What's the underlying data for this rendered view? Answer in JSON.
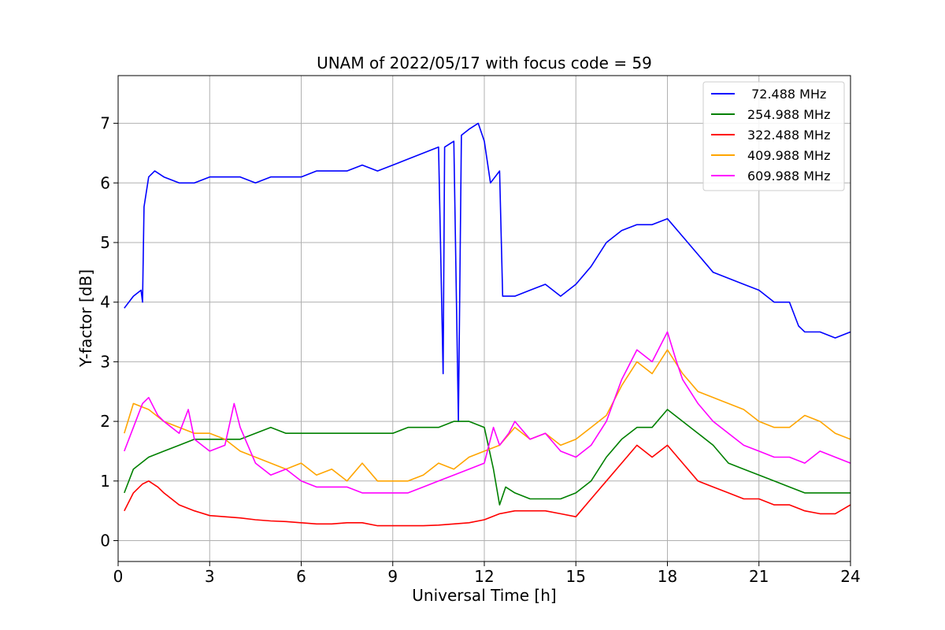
{
  "chart_data": {
    "type": "line",
    "title": "UNAM of 2022/05/17 with focus code = 59",
    "xlabel": "Universal Time [h]",
    "ylabel": "Y-factor [dB]",
    "xlim": [
      0,
      24
    ],
    "ylim": [
      -0.35,
      7.8
    ],
    "xticks": [
      0,
      3,
      6,
      9,
      12,
      15,
      18,
      21,
      24
    ],
    "yticks": [
      0,
      1,
      2,
      3,
      4,
      5,
      6,
      7
    ],
    "grid": true,
    "legend_position": "top-right",
    "series": [
      {
        "name": " 72.488 MHz",
        "color": "#0000ff",
        "x": [
          0.2,
          0.5,
          0.75,
          0.8,
          0.85,
          1.0,
          1.2,
          1.5,
          2.0,
          2.5,
          3.0,
          3.5,
          4.0,
          4.5,
          5.0,
          5.5,
          6.0,
          6.5,
          7.0,
          7.5,
          8.0,
          8.5,
          9.0,
          9.5,
          10.0,
          10.5,
          10.65,
          10.7,
          11.0,
          11.15,
          11.25,
          11.5,
          11.8,
          12.0,
          12.2,
          12.5,
          12.6,
          12.8,
          13.0,
          13.5,
          14.0,
          14.5,
          15.0,
          15.5,
          16.0,
          16.5,
          17.0,
          17.5,
          18.0,
          18.5,
          19.0,
          19.5,
          20.0,
          20.5,
          21.0,
          21.5,
          22.0,
          22.3,
          22.5,
          23.0,
          23.5,
          24.0
        ],
        "y": [
          3.9,
          4.1,
          4.2,
          4.0,
          5.6,
          6.1,
          6.2,
          6.1,
          6.0,
          6.0,
          6.1,
          6.1,
          6.1,
          6.0,
          6.1,
          6.1,
          6.1,
          6.2,
          6.2,
          6.2,
          6.3,
          6.2,
          6.3,
          6.4,
          6.5,
          6.6,
          2.8,
          6.6,
          6.7,
          2.0,
          6.8,
          6.9,
          7.0,
          6.7,
          6.0,
          6.2,
          4.1,
          4.1,
          4.1,
          4.2,
          4.3,
          4.1,
          4.3,
          4.6,
          5.0,
          5.2,
          5.3,
          5.3,
          5.4,
          5.1,
          4.8,
          4.5,
          4.4,
          4.3,
          4.2,
          4.0,
          4.0,
          3.6,
          3.5,
          3.5,
          3.4,
          3.5
        ]
      },
      {
        "name": "254.988 MHz",
        "color": "#008000",
        "x": [
          0.2,
          0.5,
          1.0,
          1.5,
          2.0,
          2.5,
          3.0,
          3.5,
          4.0,
          4.5,
          5.0,
          5.5,
          6.0,
          6.5,
          7.0,
          7.5,
          8.0,
          8.5,
          9.0,
          9.5,
          10.0,
          10.5,
          11.0,
          11.5,
          12.0,
          12.3,
          12.5,
          12.7,
          13.0,
          13.5,
          14.0,
          14.5,
          15.0,
          15.5,
          16.0,
          16.5,
          17.0,
          17.5,
          18.0,
          18.5,
          19.0,
          19.5,
          20.0,
          20.5,
          21.0,
          21.5,
          22.0,
          22.5,
          23.0,
          23.5,
          24.0
        ],
        "y": [
          0.8,
          1.2,
          1.4,
          1.5,
          1.6,
          1.7,
          1.7,
          1.7,
          1.7,
          1.8,
          1.9,
          1.8,
          1.8,
          1.8,
          1.8,
          1.8,
          1.8,
          1.8,
          1.8,
          1.9,
          1.9,
          1.9,
          2.0,
          2.0,
          1.9,
          1.2,
          0.6,
          0.9,
          0.8,
          0.7,
          0.7,
          0.7,
          0.8,
          1.0,
          1.4,
          1.7,
          1.9,
          1.9,
          2.2,
          2.0,
          1.8,
          1.6,
          1.3,
          1.2,
          1.1,
          1.0,
          0.9,
          0.8,
          0.8,
          0.8,
          0.8
        ]
      },
      {
        "name": "322.488 MHz",
        "color": "#ff0000",
        "x": [
          0.2,
          0.5,
          0.8,
          1.0,
          1.3,
          1.5,
          2.0,
          2.5,
          3.0,
          3.5,
          4.0,
          4.5,
          5.0,
          5.5,
          6.0,
          6.5,
          7.0,
          7.5,
          8.0,
          8.5,
          9.0,
          9.5,
          10.0,
          10.5,
          11.0,
          11.5,
          12.0,
          12.5,
          13.0,
          13.5,
          14.0,
          14.5,
          15.0,
          15.5,
          16.0,
          16.5,
          17.0,
          17.5,
          18.0,
          18.5,
          19.0,
          19.5,
          20.0,
          20.5,
          21.0,
          21.5,
          22.0,
          22.5,
          23.0,
          23.5,
          24.0
        ],
        "y": [
          0.5,
          0.8,
          0.95,
          1.0,
          0.9,
          0.8,
          0.6,
          0.5,
          0.42,
          0.4,
          0.38,
          0.35,
          0.33,
          0.32,
          0.3,
          0.28,
          0.28,
          0.3,
          0.3,
          0.25,
          0.25,
          0.25,
          0.25,
          0.26,
          0.28,
          0.3,
          0.35,
          0.45,
          0.5,
          0.5,
          0.5,
          0.45,
          0.4,
          0.7,
          1.0,
          1.3,
          1.6,
          1.4,
          1.6,
          1.3,
          1.0,
          0.9,
          0.8,
          0.7,
          0.7,
          0.6,
          0.6,
          0.5,
          0.45,
          0.45,
          0.6
        ]
      },
      {
        "name": "409.988 MHz",
        "color": "#ffa500",
        "x": [
          0.2,
          0.5,
          1.0,
          1.5,
          2.0,
          2.5,
          3.0,
          3.5,
          4.0,
          4.5,
          5.0,
          5.5,
          6.0,
          6.5,
          7.0,
          7.5,
          8.0,
          8.5,
          9.0,
          9.5,
          10.0,
          10.5,
          11.0,
          11.5,
          12.0,
          12.5,
          13.0,
          13.5,
          14.0,
          14.5,
          15.0,
          15.5,
          16.0,
          16.5,
          17.0,
          17.5,
          18.0,
          18.5,
          19.0,
          19.5,
          20.0,
          20.5,
          21.0,
          21.5,
          22.0,
          22.5,
          23.0,
          23.5,
          24.0
        ],
        "y": [
          1.8,
          2.3,
          2.2,
          2.0,
          1.9,
          1.8,
          1.8,
          1.7,
          1.5,
          1.4,
          1.3,
          1.2,
          1.3,
          1.1,
          1.2,
          1.0,
          1.3,
          1.0,
          1.0,
          1.0,
          1.1,
          1.3,
          1.2,
          1.4,
          1.5,
          1.6,
          1.9,
          1.7,
          1.8,
          1.6,
          1.7,
          1.9,
          2.1,
          2.6,
          3.0,
          2.8,
          3.2,
          2.8,
          2.5,
          2.4,
          2.3,
          2.2,
          2.0,
          1.9,
          1.9,
          2.1,
          2.0,
          1.8,
          1.7
        ]
      },
      {
        "name": "609.988 MHz",
        "color": "#ff00ff",
        "x": [
          0.2,
          0.5,
          0.8,
          1.0,
          1.3,
          1.5,
          2.0,
          2.3,
          2.5,
          3.0,
          3.5,
          3.8,
          4.0,
          4.5,
          5.0,
          5.5,
          6.0,
          6.5,
          7.0,
          7.5,
          8.0,
          8.5,
          9.0,
          9.5,
          10.0,
          10.5,
          11.0,
          11.5,
          12.0,
          12.3,
          12.5,
          12.8,
          13.0,
          13.5,
          14.0,
          14.5,
          15.0,
          15.5,
          16.0,
          16.5,
          17.0,
          17.5,
          18.0,
          18.3,
          18.5,
          19.0,
          19.5,
          20.0,
          20.5,
          21.0,
          21.5,
          22.0,
          22.5,
          23.0,
          23.5,
          24.0
        ],
        "y": [
          1.5,
          1.9,
          2.3,
          2.4,
          2.1,
          2.0,
          1.8,
          2.2,
          1.7,
          1.5,
          1.6,
          2.3,
          1.9,
          1.3,
          1.1,
          1.2,
          1.0,
          0.9,
          0.9,
          0.9,
          0.8,
          0.8,
          0.8,
          0.8,
          0.9,
          1.0,
          1.1,
          1.2,
          1.3,
          1.9,
          1.6,
          1.8,
          2.0,
          1.7,
          1.8,
          1.5,
          1.4,
          1.6,
          2.0,
          2.7,
          3.2,
          3.0,
          3.5,
          3.0,
          2.7,
          2.3,
          2.0,
          1.8,
          1.6,
          1.5,
          1.4,
          1.4,
          1.3,
          1.5,
          1.4,
          1.3
        ]
      }
    ]
  }
}
